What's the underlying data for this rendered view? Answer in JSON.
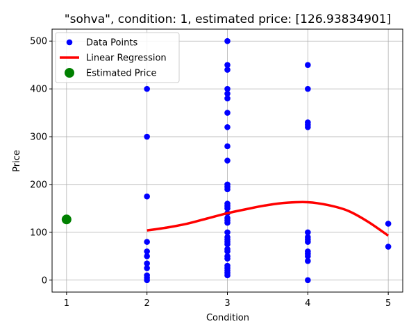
{
  "chart_data": {
    "type": "scatter",
    "title": "\"sohva\", condition: 1, estimated price: [126.93834901]",
    "xlabel": "Condition",
    "ylabel": "Price",
    "xlim": [
      0.82,
      5.18
    ],
    "ylim": [
      -25,
      525
    ],
    "xticks": [
      1,
      2,
      3,
      4,
      5
    ],
    "yticks": [
      0,
      100,
      200,
      300,
      400,
      500
    ],
    "grid": true,
    "legend_position": "top-left",
    "legend": [
      {
        "label": "Data Points",
        "marker": "dot",
        "color": "#0000ff"
      },
      {
        "label": "Linear Regression",
        "marker": "line",
        "color": "#ff0000"
      },
      {
        "label": "Estimated Price",
        "marker": "dot-large",
        "color": "#008000"
      }
    ],
    "series": [
      {
        "name": "Data Points",
        "kind": "scatter",
        "color": "#0000ff",
        "points": [
          [
            2,
            400
          ],
          [
            2,
            300
          ],
          [
            2,
            175
          ],
          [
            2,
            80
          ],
          [
            2,
            60
          ],
          [
            2,
            50
          ],
          [
            2,
            35
          ],
          [
            2,
            25
          ],
          [
            2,
            10
          ],
          [
            2,
            5
          ],
          [
            2,
            0
          ],
          [
            3,
            500
          ],
          [
            3,
            450
          ],
          [
            3,
            440
          ],
          [
            3,
            400
          ],
          [
            3,
            390
          ],
          [
            3,
            380
          ],
          [
            3,
            350
          ],
          [
            3,
            320
          ],
          [
            3,
            280
          ],
          [
            3,
            250
          ],
          [
            3,
            200
          ],
          [
            3,
            195
          ],
          [
            3,
            190
          ],
          [
            3,
            160
          ],
          [
            3,
            155
          ],
          [
            3,
            150
          ],
          [
            3,
            140
          ],
          [
            3,
            130
          ],
          [
            3,
            125
          ],
          [
            3,
            120
          ],
          [
            3,
            100
          ],
          [
            3,
            90
          ],
          [
            3,
            85
          ],
          [
            3,
            80
          ],
          [
            3,
            75
          ],
          [
            3,
            65
          ],
          [
            3,
            60
          ],
          [
            3,
            50
          ],
          [
            3,
            45
          ],
          [
            3,
            30
          ],
          [
            3,
            25
          ],
          [
            3,
            20
          ],
          [
            3,
            15
          ],
          [
            3,
            10
          ],
          [
            4,
            450
          ],
          [
            4,
            400
          ],
          [
            4,
            330
          ],
          [
            4,
            325
          ],
          [
            4,
            320
          ],
          [
            4,
            100
          ],
          [
            4,
            90
          ],
          [
            4,
            85
          ],
          [
            4,
            80
          ],
          [
            4,
            60
          ],
          [
            4,
            55
          ],
          [
            4,
            50
          ],
          [
            4,
            40
          ],
          [
            4,
            0
          ],
          [
            5,
            118
          ],
          [
            5,
            70
          ]
        ]
      },
      {
        "name": "Linear Regression",
        "kind": "line",
        "color": "#ff0000",
        "points": [
          [
            2,
            104
          ],
          [
            2.25,
            110
          ],
          [
            2.5,
            118
          ],
          [
            2.75,
            129
          ],
          [
            3,
            140
          ],
          [
            3.25,
            149
          ],
          [
            3.5,
            157
          ],
          [
            3.75,
            162
          ],
          [
            4,
            163
          ],
          [
            4.25,
            157
          ],
          [
            4.5,
            145
          ],
          [
            4.75,
            122
          ],
          [
            5,
            93
          ]
        ]
      },
      {
        "name": "Estimated Price",
        "kind": "scatter",
        "color": "#008000",
        "points": [
          [
            1,
            126.93834901
          ]
        ]
      }
    ]
  }
}
